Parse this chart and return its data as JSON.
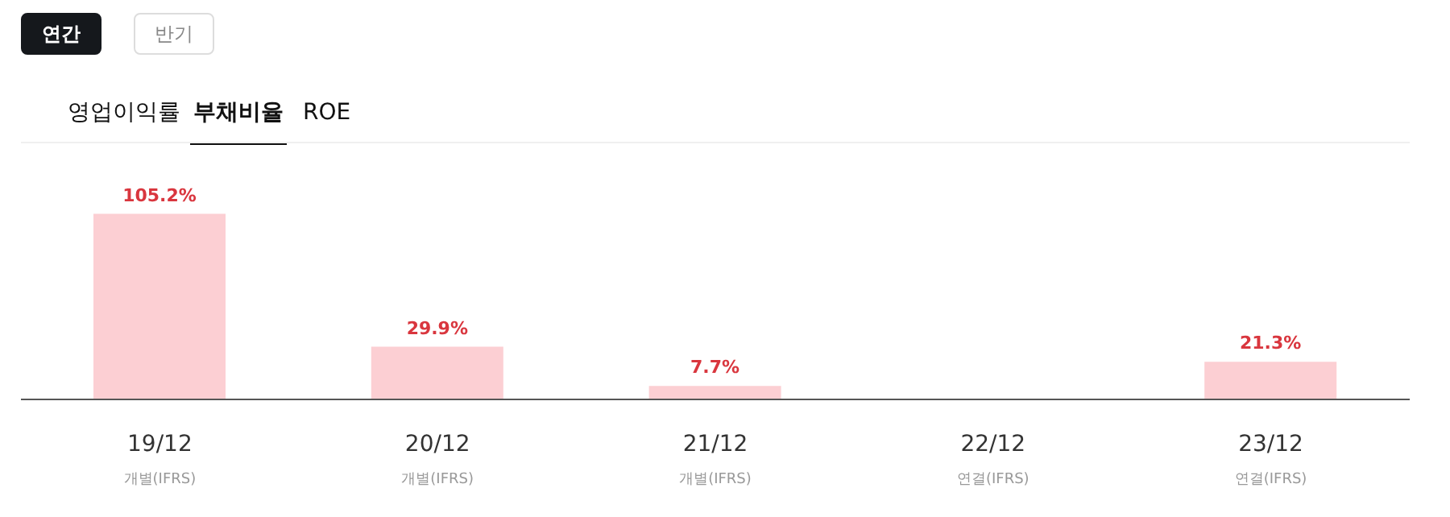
{
  "chart_data": {
    "type": "bar",
    "annotations": [
      "연간",
      "반기",
      "영업이익률",
      "부채비율",
      "ROE"
    ],
    "categories": [
      "19/12\n개별(IFRS)",
      "20/12\n개별(IFRS)",
      "21/12\n개별(IFRS)",
      "22/12\n연결(IFRS)",
      "23/12\n연결(IFRS)"
    ],
    "values": [
      105.2,
      29.9,
      7.7,
      null,
      21.3
    ],
    "value_labels": [
      "105.2%",
      "29.9%",
      "7.7%",
      null,
      "21.3%"
    ],
    "color": "#fccfd3",
    "grid": false,
    "legend": false
  }
}
